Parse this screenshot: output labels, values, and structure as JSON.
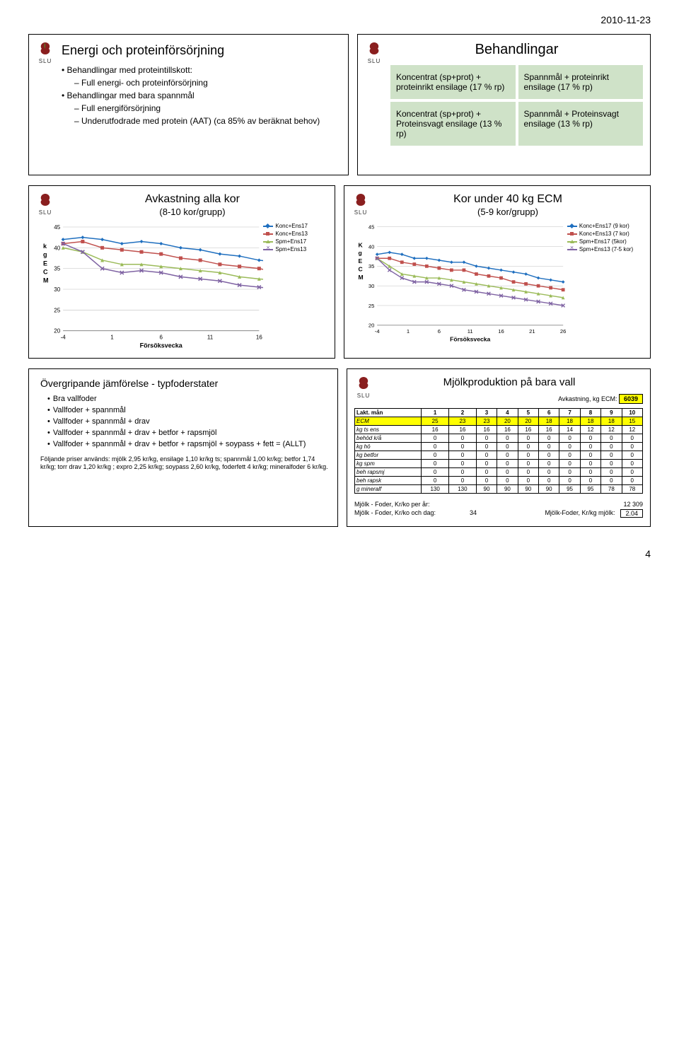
{
  "page": {
    "date": "2010-11-23",
    "number": "4"
  },
  "slide1": {
    "title": "Energi och proteinförsörjning",
    "bullets": [
      {
        "d": 0,
        "t": "Behandlingar med proteintillskott:"
      },
      {
        "d": 1,
        "t": "Full energi- och proteinförsörjning"
      },
      {
        "d": 0,
        "t": "Behandlingar med bara spannmål"
      },
      {
        "d": 1,
        "t": "Full energiförsörjning"
      },
      {
        "d": 1,
        "t": "Underutfodrade med protein (AAT)  (ca 85% av beräknat behov)"
      }
    ]
  },
  "slide2": {
    "header": "Behandlingar",
    "cells": [
      "Koncentrat (sp+prot) +  proteinrikt ensilage (17 % rp)",
      "Spannmål + proteinrikt ensilage (17 % rp)",
      "Koncentrat (sp+prot) + Proteinsvagt ensilage (13 % rp)",
      "Spannmål + Proteinsvagt ensilage (13 % rp)"
    ],
    "cell_bg": "#cfe2c8"
  },
  "chart_common": {
    "xlabel": "Försöksvecka",
    "ylims": [
      20,
      45
    ],
    "yticks": [
      20,
      25,
      30,
      35,
      40,
      45
    ],
    "colors": {
      "KoncEns17": "#1f6fbf",
      "KoncEns13": "#c0504d",
      "SpmEns17": "#9bbb59",
      "SpmEns13": "#7f63a3"
    },
    "stroke_width": 1.5,
    "marker_size": 4,
    "grid_color": "#bfbfbf",
    "bg": "#ffffff",
    "axis_fontsize": 8,
    "ylabel": "kg ECM"
  },
  "slide3": {
    "title": "Avkastning alla kor",
    "subtitle": "(8-10 kor/grupp)",
    "xticks": [
      -4,
      1,
      6,
      11,
      16
    ],
    "series": [
      {
        "name": "Konc+Ens17",
        "color": "#1f6fbf",
        "marker": "diamond",
        "x": [
          -4,
          -2,
          0,
          2,
          4,
          6,
          8,
          10,
          12,
          14,
          16,
          18
        ],
        "y": [
          42,
          42.5,
          42,
          41,
          41.5,
          41,
          40,
          39.5,
          38.5,
          38,
          37,
          36.5
        ]
      },
      {
        "name": "Konc+Ens13",
        "color": "#c0504d",
        "marker": "square",
        "x": [
          -4,
          -2,
          0,
          2,
          4,
          6,
          8,
          10,
          12,
          14,
          16,
          18
        ],
        "y": [
          41,
          41.5,
          40,
          39.5,
          39,
          38.5,
          37.5,
          37,
          36,
          35.5,
          35,
          34
        ]
      },
      {
        "name": "Spm+Ens17",
        "color": "#9bbb59",
        "marker": "triangle",
        "x": [
          -4,
          -2,
          0,
          2,
          4,
          6,
          8,
          10,
          12,
          14,
          16,
          18
        ],
        "y": [
          40,
          39,
          37,
          36,
          36,
          35.5,
          35,
          34.5,
          34,
          33,
          32.5,
          32
        ]
      },
      {
        "name": "Spm+Ens13",
        "color": "#7f63a3",
        "marker": "x",
        "x": [
          -4,
          -2,
          0,
          2,
          4,
          6,
          8,
          10,
          12,
          14,
          16,
          18
        ],
        "y": [
          41,
          39,
          35,
          34,
          34.5,
          34,
          33,
          32.5,
          32,
          31,
          30.5,
          30
        ]
      }
    ]
  },
  "slide4": {
    "title": "Kor under 40 kg ECM",
    "subtitle": "(5-9 kor/grupp)",
    "xticks": [
      -4,
      1,
      6,
      11,
      16,
      21,
      26
    ],
    "ylabel": "Kg ECM",
    "series": [
      {
        "name": "Konc+Ens17 (9 kor)",
        "color": "#1f6fbf",
        "marker": "diamond",
        "x": [
          -4,
          -2,
          0,
          2,
          4,
          6,
          8,
          10,
          12,
          14,
          16,
          18,
          20,
          22,
          24,
          26
        ],
        "y": [
          38,
          38.5,
          38,
          37,
          37,
          36.5,
          36,
          36,
          35,
          34.5,
          34,
          33.5,
          33,
          32,
          31.5,
          31
        ]
      },
      {
        "name": "Konc+Ens13 (7 kor)",
        "color": "#c0504d",
        "marker": "square",
        "x": [
          -4,
          -2,
          0,
          2,
          4,
          6,
          8,
          10,
          12,
          14,
          16,
          18,
          20,
          22,
          24,
          26
        ],
        "y": [
          37,
          37,
          36,
          35.5,
          35,
          34.5,
          34,
          34,
          33,
          32.5,
          32,
          31,
          30.5,
          30,
          29.5,
          29
        ]
      },
      {
        "name": "Spm+Ens17 (5kor)",
        "color": "#9bbb59",
        "marker": "triangle",
        "x": [
          -4,
          -2,
          0,
          2,
          4,
          6,
          8,
          10,
          12,
          14,
          16,
          18,
          20,
          22,
          24,
          26
        ],
        "y": [
          37,
          35,
          33,
          32.5,
          32,
          32,
          31.5,
          31,
          30.5,
          30,
          29.5,
          29,
          28.5,
          28,
          27.5,
          27
        ]
      },
      {
        "name": "Spm+Ens13 (7-5 kor)",
        "color": "#7f63a3",
        "marker": "x",
        "x": [
          -4,
          -2,
          0,
          2,
          4,
          6,
          8,
          10,
          12,
          14,
          16,
          18,
          20,
          22,
          24,
          26
        ],
        "y": [
          37,
          34,
          32,
          31,
          31,
          30.5,
          30,
          29,
          28.5,
          28,
          27.5,
          27,
          26.5,
          26,
          25.5,
          25
        ]
      }
    ]
  },
  "slide5": {
    "title": "Övergripande jämförelse - typfoderstater",
    "bullets": [
      "Bra vallfoder",
      "Vallfoder + spannmål",
      "Vallfoder + spannmål + drav",
      "Vallfoder + spannmål + drav + betfor + rapsmjöl",
      "Vallfoder + spannmål + drav + betfor + rapsmjöl + soypass + fett  = (ALLT)"
    ],
    "fineprint": "Följande priser används: mjölk 2,95 kr/kg, ensilage 1,10 kr/kg ts; spannmål 1,00 kr/kg; betfor 1,74 kr/kg; torr drav 1,20 kr/kg ;  expro 2,25 kr/kg; soypass 2,60 kr/kg, foderfett 4 kr/kg; mineralfoder 6 kr/kg."
  },
  "slide6": {
    "title": "Mjölkproduktion på bara vall",
    "avk_label": "Avkastning, kg ECM:",
    "avk_value": "6039",
    "table": {
      "header_first": "Lakt. mån",
      "cols": [
        "1",
        "2",
        "3",
        "4",
        "5",
        "6",
        "7",
        "8",
        "9",
        "10"
      ],
      "rows": [
        {
          "lbl": "ECM",
          "bg": "#ffff00",
          "v": [
            "25",
            "23",
            "23",
            "20",
            "20",
            "18",
            "18",
            "18",
            "18",
            "15"
          ]
        },
        {
          "lbl": "kg ts ens",
          "v": [
            "16",
            "16",
            "16",
            "16",
            "16",
            "16",
            "14",
            "12",
            "12",
            "12"
          ]
        },
        {
          "lbl": "behöd k/å",
          "v": [
            "0",
            "0",
            "0",
            "0",
            "0",
            "0",
            "0",
            "0",
            "0",
            "0"
          ]
        },
        {
          "lbl": "kg hö",
          "v": [
            "0",
            "0",
            "0",
            "0",
            "0",
            "0",
            "0",
            "0",
            "0",
            "0"
          ]
        },
        {
          "lbl": "kg betfor",
          "v": [
            "0",
            "0",
            "0",
            "0",
            "0",
            "0",
            "0",
            "0",
            "0",
            "0"
          ]
        },
        {
          "lbl": "kg spm",
          "v": [
            "0",
            "0",
            "0",
            "0",
            "0",
            "0",
            "0",
            "0",
            "0",
            "0"
          ]
        },
        {
          "lbl": "beh rapsmj",
          "v": [
            "0",
            "0",
            "0",
            "0",
            "0",
            "0",
            "0",
            "0",
            "0",
            "0"
          ]
        },
        {
          "lbl": "beh rapsk",
          "v": [
            "0",
            "0",
            "0",
            "0",
            "0",
            "0",
            "0",
            "0",
            "0",
            "0"
          ]
        },
        {
          "lbl": "g mineralf",
          "v": [
            "130",
            "130",
            "90",
            "90",
            "90",
            "90",
            "95",
            "95",
            "78",
            "78"
          ]
        }
      ]
    },
    "footer": {
      "l1": "Mjölk - Foder, Kr/ko per år:",
      "v1": "12 309",
      "l2": "Mjölk - Foder, Kr/ko och dag:",
      "v2": "34",
      "l3": "Mjölk-Foder, Kr/kg mjölk:",
      "v3": "2.04"
    }
  }
}
